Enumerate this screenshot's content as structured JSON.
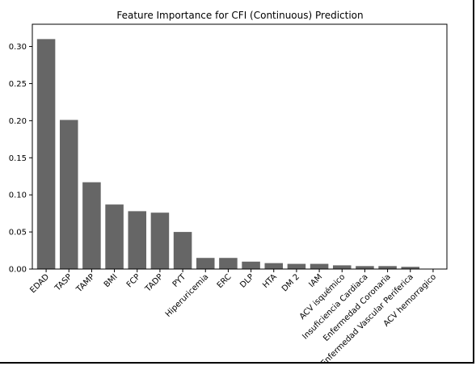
{
  "chart_data": {
    "type": "bar",
    "title": "Feature Importance for CFI (Continuous) Prediction",
    "xlabel": "",
    "ylabel": "",
    "ylim": [
      0,
      0.33
    ],
    "yticks": [
      0.0,
      0.05,
      0.1,
      0.15,
      0.2,
      0.25,
      0.3
    ],
    "ytick_labels": [
      "0.00",
      "0.05",
      "0.10",
      "0.15",
      "0.20",
      "0.25",
      "0.30"
    ],
    "grid": false,
    "bar_color": "#666666",
    "categories": [
      "EDAD",
      "TASP",
      "TAMP",
      "BMI",
      "FCP",
      "TADP",
      "PYT",
      "Hiperuricemia",
      "ERC",
      "DLP",
      "HTA",
      "DM 2",
      "IAM",
      "ACV isquémico",
      "Insuficiencia Cardiaca",
      "Enfermedad Coronaria",
      "Enfermedad Vascular Periferica",
      "ACV hemorragico"
    ],
    "values": [
      0.31,
      0.201,
      0.117,
      0.087,
      0.078,
      0.076,
      0.05,
      0.015,
      0.015,
      0.01,
      0.008,
      0.007,
      0.007,
      0.005,
      0.004,
      0.004,
      0.003,
      0.0005
    ]
  }
}
